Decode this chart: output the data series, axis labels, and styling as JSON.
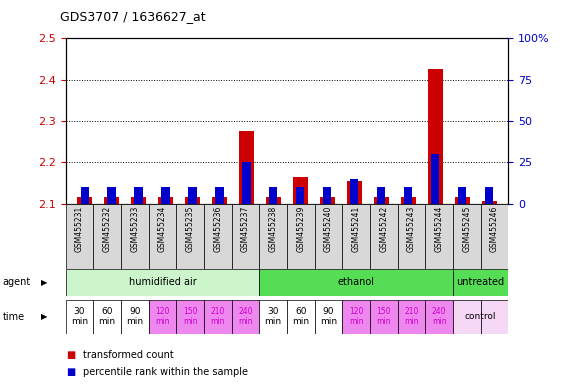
{
  "title": "GDS3707 / 1636627_at",
  "samples": [
    "GSM455231",
    "GSM455232",
    "GSM455233",
    "GSM455234",
    "GSM455235",
    "GSM455236",
    "GSM455237",
    "GSM455238",
    "GSM455239",
    "GSM455240",
    "GSM455241",
    "GSM455242",
    "GSM455243",
    "GSM455244",
    "GSM455245",
    "GSM455246"
  ],
  "red_values": [
    2.115,
    2.115,
    2.115,
    2.115,
    2.115,
    2.115,
    2.275,
    2.115,
    2.165,
    2.115,
    2.155,
    2.115,
    2.115,
    2.425,
    2.115,
    2.105
  ],
  "blue_values_pct": [
    10,
    10,
    10,
    10,
    10,
    10,
    25,
    10,
    10,
    10,
    15,
    10,
    10,
    30,
    10,
    10
  ],
  "ylim_left": [
    2.1,
    2.5
  ],
  "ylim_right": [
    0,
    100
  ],
  "yticks_left": [
    2.1,
    2.2,
    2.3,
    2.4,
    2.5
  ],
  "yticks_right": [
    0,
    25,
    50,
    75,
    100
  ],
  "bar_width": 0.55,
  "blue_bar_width": 0.3,
  "red_color": "#cc0000",
  "blue_color": "#0000cc",
  "axis_color_left": "#cc0000",
  "axis_color_right": "#0000cc",
  "background_color": "#ffffff",
  "agent_light_green": "#ccf5cc",
  "agent_dark_green": "#55dd55",
  "time_white": "#ffffff",
  "time_pink": "#ee88ee",
  "time_control_bg": "#f5d8f5",
  "sample_cell_color": "#d8d8d8",
  "agent_groups": [
    {
      "label": "humidified air",
      "start": 0,
      "end": 7,
      "light": true
    },
    {
      "label": "ethanol",
      "start": 7,
      "end": 14,
      "light": false
    },
    {
      "label": "untreated",
      "start": 14,
      "end": 16,
      "light": false
    }
  ],
  "time_labels": [
    "30\nmin",
    "60\nmin",
    "90\nmin",
    "120\nmin",
    "150\nmin",
    "210\nmin",
    "240\nmin",
    "30\nmin",
    "60\nmin",
    "90\nmin",
    "120\nmin",
    "150\nmin",
    "210\nmin",
    "240\nmin",
    "control",
    "control"
  ],
  "time_is_pink": [
    false,
    false,
    false,
    true,
    true,
    true,
    true,
    false,
    false,
    false,
    true,
    true,
    true,
    true,
    false,
    false
  ],
  "time_is_control": [
    false,
    false,
    false,
    false,
    false,
    false,
    false,
    false,
    false,
    false,
    false,
    false,
    false,
    false,
    true,
    true
  ]
}
